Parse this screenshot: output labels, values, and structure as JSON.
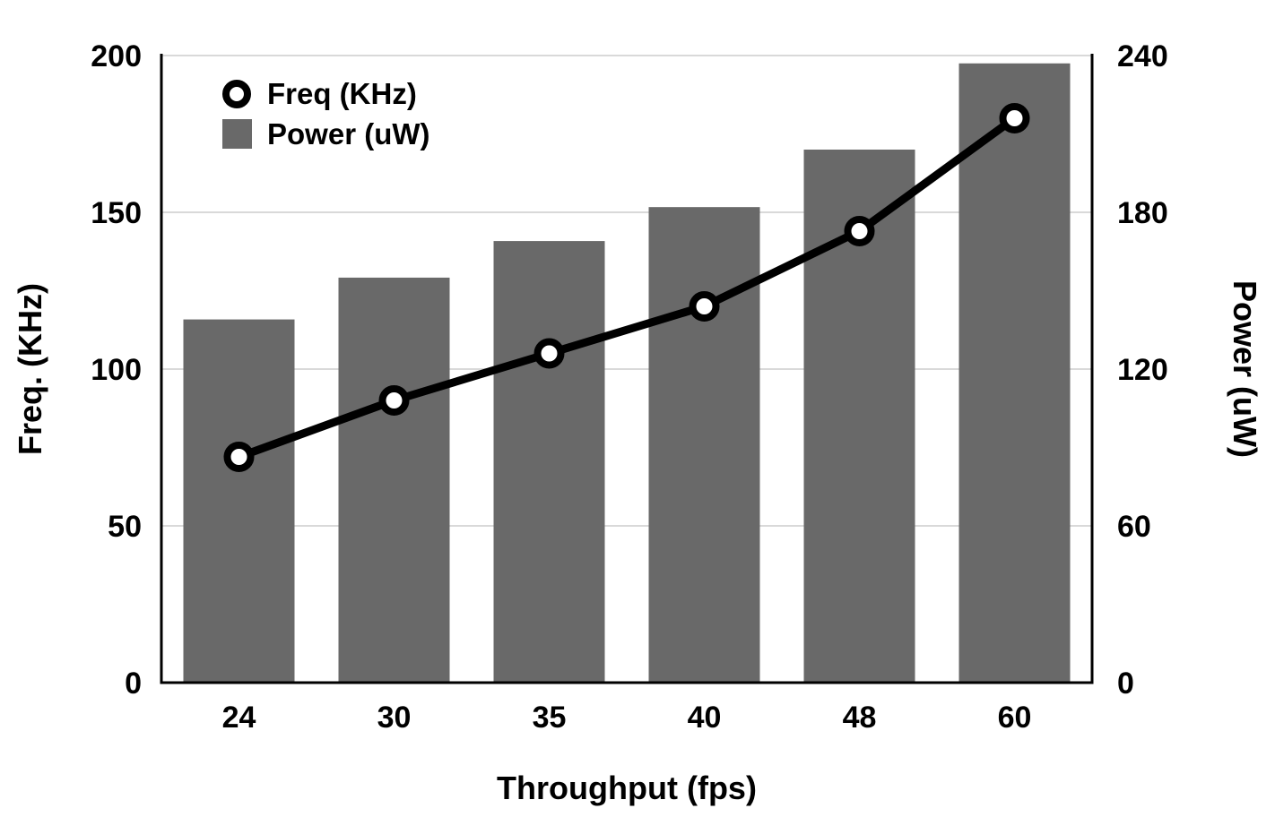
{
  "chart_data": {
    "type": "combo",
    "title": "",
    "categories": [
      "24",
      "30",
      "35",
      "40",
      "48",
      "60"
    ],
    "series": [
      {
        "name": "Freq (KHz)",
        "type": "line",
        "axis": "left",
        "values": [
          72,
          90,
          105,
          120,
          144,
          180
        ],
        "color": "#000000",
        "marker": {
          "shape": "circle",
          "fill": "#ffffff",
          "stroke": "#000000"
        }
      },
      {
        "name": "Power (uW)",
        "type": "bar",
        "axis": "right",
        "values": [
          139,
          155,
          169,
          182,
          204,
          237
        ],
        "color": "#696969"
      }
    ],
    "left_axis": {
      "label": "Freq. (KHz)",
      "min": 0,
      "max": 200,
      "ticks": [
        0,
        50,
        100,
        150,
        200
      ]
    },
    "right_axis": {
      "label": "Power (uW)",
      "min": 0,
      "max": 240,
      "ticks": [
        0,
        60,
        120,
        180,
        240
      ]
    },
    "x_axis": {
      "label": "Throughput (fps)"
    },
    "grid": true,
    "grid_color": "#d9d9d9",
    "axis_color": "#000000",
    "background": "#ffffff",
    "legend_position": "top-left"
  }
}
